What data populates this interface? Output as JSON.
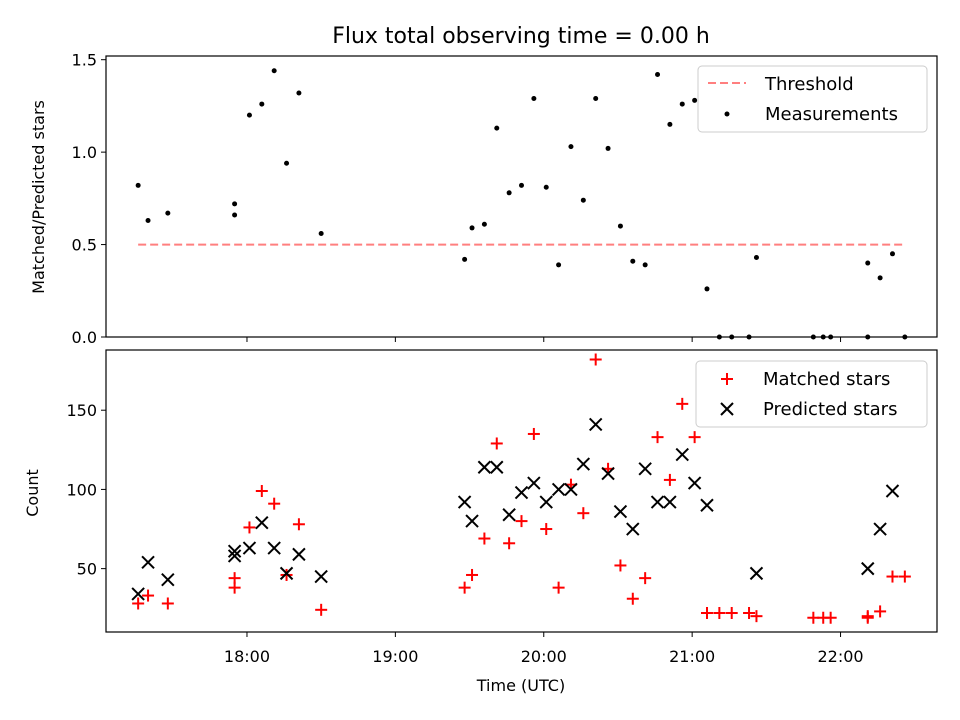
{
  "chart_data": [
    {
      "type": "scatter",
      "title": "Flux total observing time = 0.00 h",
      "ylabel": "Matched/Predicted stars",
      "xlabel": "",
      "xlim": [
        "17:03",
        "22:39"
      ],
      "ylim": [
        0,
        1.52
      ],
      "yticks": [
        "0.0",
        "0.5",
        "1.0",
        "1.5"
      ],
      "legend": "top-right",
      "threshold": {
        "name": "Threshold",
        "value": 0.5,
        "x_start": "17:16",
        "x_end": "22:25",
        "color": "#ff7f7f",
        "style": "dashed"
      },
      "series": [
        {
          "name": "Measurements",
          "color": "#000000",
          "marker": "dot",
          "points": [
            [
              "17:16",
              0.82
            ],
            [
              "17:20",
              0.63
            ],
            [
              "17:28",
              0.67
            ],
            [
              "17:55",
              0.66
            ],
            [
              "17:55",
              0.72
            ],
            [
              "18:01",
              1.2
            ],
            [
              "18:06",
              1.26
            ],
            [
              "18:11",
              1.44
            ],
            [
              "18:16",
              0.94
            ],
            [
              "18:21",
              1.32
            ],
            [
              "18:30",
              0.56
            ],
            [
              "19:28",
              0.42
            ],
            [
              "19:31",
              0.59
            ],
            [
              "19:36",
              0.61
            ],
            [
              "19:41",
              1.13
            ],
            [
              "19:46",
              0.78
            ],
            [
              "19:51",
              0.82
            ],
            [
              "19:56",
              1.29
            ],
            [
              "20:01",
              0.81
            ],
            [
              "20:06",
              0.39
            ],
            [
              "20:11",
              1.03
            ],
            [
              "20:16",
              0.74
            ],
            [
              "20:21",
              1.29
            ],
            [
              "20:26",
              1.02
            ],
            [
              "20:31",
              0.6
            ],
            [
              "20:36",
              0.41
            ],
            [
              "20:41",
              0.39
            ],
            [
              "20:46",
              1.42
            ],
            [
              "20:51",
              1.15
            ],
            [
              "20:56",
              1.26
            ],
            [
              "21:01",
              1.28
            ],
            [
              "21:06",
              0.26
            ],
            [
              "21:11",
              0.0
            ],
            [
              "21:16",
              0.0
            ],
            [
              "21:23",
              0.0
            ],
            [
              "21:26",
              0.43
            ],
            [
              "21:49",
              0.0
            ],
            [
              "21:53",
              0.0
            ],
            [
              "21:56",
              0.0
            ],
            [
              "22:11",
              0.0
            ],
            [
              "22:11",
              0.4
            ],
            [
              "22:16",
              0.32
            ],
            [
              "22:21",
              0.45
            ],
            [
              "22:26",
              0.0
            ]
          ]
        }
      ]
    },
    {
      "type": "scatter",
      "title": "",
      "xlabel": "Time (UTC)",
      "ylabel": "Count",
      "xlim": [
        "17:03",
        "22:39"
      ],
      "ylim": [
        10,
        188
      ],
      "xticks": [
        "18:00",
        "19:00",
        "20:00",
        "21:00",
        "22:00"
      ],
      "yticks": [
        "50",
        "100",
        "150"
      ],
      "legend": "top-right",
      "series": [
        {
          "name": "Matched stars",
          "color": "#ff0000",
          "marker": "plus",
          "points": [
            [
              "17:16",
              28
            ],
            [
              "17:20",
              33
            ],
            [
              "17:28",
              28
            ],
            [
              "17:55",
              38
            ],
            [
              "17:55",
              44
            ],
            [
              "18:01",
              76
            ],
            [
              "18:06",
              99
            ],
            [
              "18:11",
              91
            ],
            [
              "18:16",
              46
            ],
            [
              "18:21",
              78
            ],
            [
              "18:30",
              24
            ],
            [
              "19:28",
              38
            ],
            [
              "19:31",
              46
            ],
            [
              "19:36",
              69
            ],
            [
              "19:41",
              129
            ],
            [
              "19:46",
              66
            ],
            [
              "19:51",
              80
            ],
            [
              "19:56",
              135
            ],
            [
              "20:01",
              75
            ],
            [
              "20:06",
              38
            ],
            [
              "20:11",
              103
            ],
            [
              "20:16",
              85
            ],
            [
              "20:21",
              182
            ],
            [
              "20:26",
              113
            ],
            [
              "20:31",
              52
            ],
            [
              "20:36",
              31
            ],
            [
              "20:41",
              44
            ],
            [
              "20:46",
              133
            ],
            [
              "20:51",
              106
            ],
            [
              "20:56",
              154
            ],
            [
              "21:01",
              133
            ],
            [
              "21:06",
              22
            ],
            [
              "21:11",
              22
            ],
            [
              "21:16",
              22
            ],
            [
              "21:23",
              22
            ],
            [
              "21:26",
              20
            ],
            [
              "21:49",
              19
            ],
            [
              "21:53",
              19
            ],
            [
              "21:56",
              19
            ],
            [
              "22:11",
              19
            ],
            [
              "22:11",
              20
            ],
            [
              "22:16",
              23
            ],
            [
              "22:21",
              45
            ],
            [
              "22:26",
              45
            ]
          ]
        },
        {
          "name": "Predicted stars",
          "color": "#000000",
          "marker": "x",
          "points": [
            [
              "17:16",
              34
            ],
            [
              "17:20",
              54
            ],
            [
              "17:28",
              43
            ],
            [
              "17:55",
              58
            ],
            [
              "17:55",
              61
            ],
            [
              "18:01",
              63
            ],
            [
              "18:06",
              79
            ],
            [
              "18:11",
              63
            ],
            [
              "18:16",
              47
            ],
            [
              "18:21",
              59
            ],
            [
              "18:30",
              45
            ],
            [
              "19:28",
              92
            ],
            [
              "19:31",
              80
            ],
            [
              "19:36",
              114
            ],
            [
              "19:41",
              114
            ],
            [
              "19:46",
              84
            ],
            [
              "19:51",
              98
            ],
            [
              "19:56",
              104
            ],
            [
              "20:01",
              92
            ],
            [
              "20:06",
              100
            ],
            [
              "20:11",
              100
            ],
            [
              "20:16",
              116
            ],
            [
              "20:21",
              141
            ],
            [
              "20:26",
              110
            ],
            [
              "20:31",
              86
            ],
            [
              "20:36",
              75
            ],
            [
              "20:41",
              113
            ],
            [
              "20:46",
              92
            ],
            [
              "20:51",
              92
            ],
            [
              "20:56",
              122
            ],
            [
              "21:01",
              104
            ],
            [
              "21:06",
              90
            ],
            [
              "21:26",
              47
            ],
            [
              "22:11",
              50
            ],
            [
              "22:16",
              75
            ],
            [
              "22:21",
              99
            ]
          ]
        }
      ]
    }
  ]
}
